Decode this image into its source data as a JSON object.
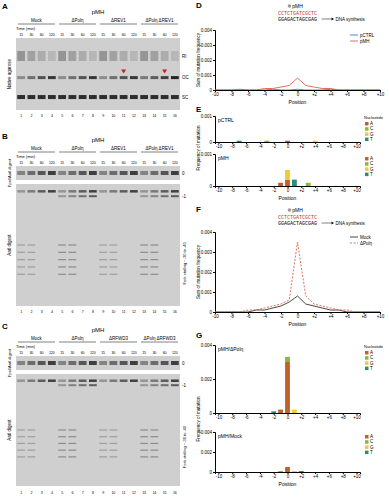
{
  "panel_labels": [
    "A",
    "B",
    "C",
    "D",
    "E",
    "F",
    "G"
  ],
  "gels": [
    {
      "title": "pMH",
      "groups": [
        "Mock",
        "ΔPolη",
        "ΔREV1",
        "ΔPolη ΔREV1"
      ],
      "time_label": "Time (min)",
      "times": [
        15,
        30,
        60,
        120,
        15,
        30,
        60,
        120,
        15,
        30,
        60,
        120,
        15,
        30,
        60,
        120
      ],
      "lane_numbers": [
        1,
        2,
        3,
        4,
        5,
        6,
        7,
        8,
        9,
        10,
        11,
        12,
        13,
        14,
        15,
        16
      ],
      "side_labels": [
        "RI",
        "OC",
        "SC"
      ],
      "left_label": "Native agarose"
    },
    {
      "title": "pMH",
      "groups": [
        "Mock",
        "ΔPolη",
        "ΔREV1",
        "ΔPolη ΔREV1"
      ],
      "time_label": "Time (min)",
      "times": [
        15,
        30,
        60,
        120,
        15,
        30,
        60,
        120,
        15,
        30,
        60,
        120,
        15,
        30,
        60,
        120
      ],
      "lane_numbers": [
        1,
        2,
        3,
        4,
        5,
        6,
        7,
        8,
        9,
        10,
        11,
        12,
        13,
        14,
        15,
        16
      ],
      "side_labels": [
        "0",
        "-1",
        "Fork stalling ~-30 to -40"
      ],
      "top_label": "FpoI/AatI digest",
      "bottom_label": "AatI digest"
    },
    {
      "title": "pMH",
      "groups": [
        "Mock",
        "ΔPolη",
        "ΔRFWD3",
        "ΔPolη ΔRFWD3"
      ],
      "time_label": "Time (min)",
      "times": [
        15,
        30,
        60,
        120,
        15,
        30,
        60,
        120,
        15,
        30,
        60,
        120,
        15,
        30,
        60,
        120
      ],
      "lane_numbers": [
        1,
        2,
        3,
        4,
        5,
        6,
        7,
        8,
        9,
        10,
        11,
        12,
        13,
        14,
        15,
        16
      ],
      "side_labels": [
        "0",
        "-1",
        "Fork stalling ~-30 to -40"
      ],
      "top_label": "FpoI/AatI digest",
      "bottom_label": "AatI digest"
    }
  ],
  "chart_data": [
    {
      "type": "line",
      "annotations": [
        "pMH",
        "CCTCTGATCGCTC",
        "GGAGACTAGCGAG",
        "DNA synthesis"
      ],
      "xlabel": "Position",
      "ylabel": "Sum of mutation frequency",
      "x": [
        -10,
        -9,
        -8,
        -7,
        -6,
        -5,
        -4,
        -3,
        -2,
        -1,
        0,
        1,
        2,
        3,
        4,
        5,
        6,
        7,
        8,
        9,
        10
      ],
      "series": [
        {
          "name": "pCTRL",
          "color": "#3a7fc1",
          "values": [
            0,
            0,
            0,
            5e-05,
            0,
            0,
            0,
            5e-05,
            0,
            0,
            5e-05,
            0,
            0,
            0,
            5e-05,
            0,
            0,
            0,
            0,
            0,
            0
          ]
        },
        {
          "name": "pMH",
          "color": "#e0604a",
          "values": [
            0,
            0,
            0,
            0,
            0,
            0,
            0.0001,
            0.0001,
            0.0002,
            0.0003,
            0.0008,
            0.0003,
            0.0002,
            0.0001,
            0.0001,
            0,
            0,
            0,
            0,
            0,
            0
          ]
        }
      ],
      "xlim": [
        -10,
        10
      ],
      "xticks": [
        -10,
        -8,
        -6,
        -4,
        -2,
        0,
        {
          "value": 2,
          "label": "+2"
        },
        {
          "value": 4,
          "label": "+4"
        },
        {
          "value": 6,
          "label": "+6"
        },
        {
          "value": 8,
          "label": "+8"
        },
        {
          "value": 10,
          "label": "+10"
        }
      ],
      "ylim": [
        0,
        0.004
      ],
      "yticks": [
        0,
        0.001,
        0.002,
        0.003,
        0.004
      ],
      "legend": "upper right"
    },
    {
      "type": "bar",
      "stacked": true,
      "title": "pCTRL",
      "ylabel": "Frequency of mutation",
      "legend_title": "Nucleotide",
      "x": [
        -10,
        -9,
        -8,
        -7,
        -6,
        -5,
        -4,
        -3,
        -2,
        -1,
        0,
        1,
        2,
        3,
        4,
        5,
        6,
        7,
        8,
        9,
        10
      ],
      "series": [
        {
          "name": "A",
          "color": "#c0622a",
          "values": [
            0,
            0,
            0,
            0,
            0,
            0,
            0,
            0,
            0,
            0,
            5e-05,
            0,
            0,
            0,
            0,
            0,
            0,
            0,
            0,
            0,
            0
          ]
        },
        {
          "name": "C",
          "color": "#8bb83a",
          "values": [
            0,
            0,
            0,
            0,
            0,
            0,
            0,
            5e-05,
            0,
            0,
            0,
            0,
            0,
            0,
            0,
            0,
            0,
            0,
            0,
            0,
            0
          ]
        },
        {
          "name": "G",
          "color": "#f0c93a",
          "values": [
            0,
            0,
            0,
            0,
            0,
            0,
            0,
            0,
            0,
            0,
            0,
            0,
            0,
            0,
            5e-05,
            0,
            0,
            0,
            0,
            0,
            0
          ]
        },
        {
          "name": "T",
          "color": "#2a8c7a",
          "values": [
            0,
            0,
            0,
            5e-05,
            0,
            0,
            0,
            0,
            0,
            0,
            0,
            0,
            0,
            0,
            0,
            0,
            0,
            0,
            0,
            0,
            0
          ]
        }
      ],
      "xlim": [
        -10.5,
        10.5
      ],
      "xticks": [
        -10,
        -8,
        -6,
        -4,
        -2,
        0,
        {
          "value": 2,
          "label": "+2"
        },
        {
          "value": 4,
          "label": "+4"
        },
        {
          "value": 6,
          "label": "+6"
        },
        {
          "value": 8,
          "label": "+8"
        },
        {
          "value": 10,
          "label": "+10"
        }
      ],
      "ylim": [
        0,
        0.001
      ],
      "yticks": [
        0,
        0.001
      ],
      "legend": "right"
    },
    {
      "type": "bar",
      "stacked": true,
      "title": "pMH",
      "xlabel": "Position",
      "x": [
        -10,
        -9,
        -8,
        -7,
        -6,
        -5,
        -4,
        -3,
        -2,
        -1,
        0,
        1,
        2,
        3,
        4,
        5,
        6,
        7,
        8,
        9,
        10
      ],
      "series": [
        {
          "name": "A",
          "color": "#c0622a",
          "values": [
            0,
            0,
            0,
            0,
            0,
            0,
            0,
            0,
            0,
            0.0001,
            0.0002,
            0,
            0,
            0,
            0,
            0,
            0,
            0,
            0,
            0,
            0
          ]
        },
        {
          "name": "C",
          "color": "#8bb83a",
          "values": [
            0,
            0,
            0,
            0,
            0,
            0,
            0,
            0,
            0,
            0,
            0,
            0,
            0,
            0.0001,
            0,
            0,
            0,
            0,
            0,
            0,
            0
          ]
        },
        {
          "name": "G",
          "color": "#f0c93a",
          "values": [
            0,
            0,
            0,
            0,
            0,
            0,
            0,
            0,
            0,
            0,
            0.0003,
            0,
            0,
            0,
            0,
            0,
            0,
            0,
            0,
            0,
            0
          ]
        },
        {
          "name": "T",
          "color": "#2a8c7a",
          "values": [
            0,
            0,
            0,
            0,
            0,
            0,
            0,
            0,
            0,
            0,
            0,
            0.0002,
            0,
            0,
            0,
            0,
            0,
            0,
            0,
            0,
            0
          ]
        }
      ],
      "xlim": [
        -10.5,
        10.5
      ],
      "xticks": [
        -10,
        -8,
        -6,
        -4,
        -2,
        0,
        {
          "value": 2,
          "label": "+2"
        },
        {
          "value": 4,
          "label": "+4"
        },
        {
          "value": 6,
          "label": "+6"
        },
        {
          "value": 8,
          "label": "+8"
        },
        {
          "value": 10,
          "label": "+10"
        }
      ],
      "ylim": [
        0,
        0.001
      ],
      "yticks": [
        0,
        0.001
      ],
      "legend": "right"
    },
    {
      "type": "line",
      "annotations": [
        "pMH",
        "CCTCTGATCGCTC",
        "GGAGACTAGCGAG",
        "DNA synthesis"
      ],
      "xlabel": "Position",
      "ylabel": "Sum of mutation frequency",
      "x": [
        -10,
        -9,
        -8,
        -7,
        -6,
        -5,
        -4,
        -3,
        -2,
        -1,
        0,
        1,
        2,
        3,
        4,
        5,
        6,
        7,
        8,
        9,
        10
      ],
      "series": [
        {
          "name": "Mock",
          "color": "#333333",
          "line_style": "solid",
          "values": [
            0,
            0,
            0,
            0,
            0,
            0.0001,
            0.0001,
            0.0002,
            0.0003,
            0.0005,
            0.0008,
            0.0004,
            0.0003,
            0.0002,
            0.0001,
            0.0001,
            0,
            0,
            0,
            0,
            0
          ]
        },
        {
          "name": "ΔPolη",
          "color": "#e0604a",
          "line_style": "dashed",
          "values": [
            0,
            0,
            0,
            0,
            0.0001,
            0.0001,
            0.0002,
            0.0003,
            0.0004,
            0.0006,
            0.0035,
            0.0008,
            0.0004,
            0.0003,
            0.0002,
            0.0001,
            0.0001,
            0,
            0,
            0,
            0
          ]
        }
      ],
      "xlim": [
        -10,
        10
      ],
      "xticks": [
        -10,
        -8,
        -6,
        -4,
        -2,
        0,
        {
          "value": 2,
          "label": "+2"
        },
        {
          "value": 4,
          "label": "+4"
        },
        {
          "value": 6,
          "label": "+6"
        },
        {
          "value": 8,
          "label": "+8"
        },
        {
          "value": 10,
          "label": "+10"
        }
      ],
      "ylim": [
        0,
        0.004
      ],
      "yticks": [
        0,
        0.001,
        0.002,
        0.003,
        0.004
      ],
      "legend": "upper right"
    },
    {
      "type": "bar",
      "stacked": true,
      "title": "pMH/ΔPolη",
      "ylabel": "Frequency of mutation",
      "legend_title": "Nucleotide",
      "x": [
        -10,
        -9,
        -8,
        -7,
        -6,
        -5,
        -4,
        -3,
        -2,
        -1,
        0,
        1,
        2,
        3,
        4,
        5,
        6,
        7,
        8,
        9,
        10
      ],
      "series": [
        {
          "name": "A",
          "color": "#c0622a",
          "values": [
            0,
            0,
            0,
            0,
            0,
            0,
            0,
            0,
            0,
            0.0002,
            0.003,
            0,
            0,
            0,
            0,
            0,
            0,
            0,
            0,
            0,
            0
          ]
        },
        {
          "name": "C",
          "color": "#8bb83a",
          "values": [
            0,
            0,
            0,
            0,
            0,
            0,
            0,
            0,
            0,
            0,
            0.0003,
            0,
            0,
            0,
            0,
            0,
            0,
            0,
            0,
            0,
            0
          ]
        },
        {
          "name": "G",
          "color": "#f0c93a",
          "values": [
            0,
            0,
            0,
            0,
            0,
            0,
            0,
            0,
            0,
            0,
            0,
            0.0002,
            0,
            0,
            0,
            0,
            0,
            0,
            0,
            0,
            0
          ]
        },
        {
          "name": "T",
          "color": "#2a8c7a",
          "values": [
            0,
            0,
            0,
            0,
            0,
            0,
            0,
            0,
            0.0001,
            0,
            0,
            0,
            0,
            0,
            0,
            0,
            0,
            0,
            0,
            0,
            0
          ]
        }
      ],
      "xlim": [
        -10.5,
        10.5
      ],
      "xticks": [
        -10,
        -8,
        -6,
        -4,
        -2,
        0,
        {
          "value": 2,
          "label": "+2"
        },
        {
          "value": 4,
          "label": "+4"
        },
        {
          "value": 6,
          "label": "+6"
        },
        {
          "value": 8,
          "label": "+8"
        },
        {
          "value": 10,
          "label": "+10"
        }
      ],
      "ylim": [
        0,
        0.004
      ],
      "yticks": [
        0,
        0.002,
        0.004
      ],
      "legend": "right"
    },
    {
      "type": "bar",
      "stacked": true,
      "title": "pMH/Mock",
      "xlabel": "Position",
      "x": [
        -10,
        -9,
        -8,
        -7,
        -6,
        -5,
        -4,
        -3,
        -2,
        -1,
        0,
        1,
        2,
        3,
        4,
        5,
        6,
        7,
        8,
        9,
        10
      ],
      "series": [
        {
          "name": "A",
          "color": "#c0622a",
          "values": [
            0,
            0,
            0,
            0,
            0,
            0,
            0,
            0,
            0,
            0,
            0.0005,
            0,
            0,
            0,
            0,
            0,
            0,
            0,
            0,
            0,
            0
          ]
        },
        {
          "name": "C",
          "color": "#8bb83a",
          "values": [
            0,
            0,
            0,
            0,
            0,
            0,
            0,
            0,
            0,
            0.0001,
            0,
            0,
            0,
            0,
            0,
            0,
            0,
            0,
            0,
            0,
            0
          ]
        },
        {
          "name": "G",
          "color": "#f0c93a",
          "values": [
            0,
            0,
            0,
            0,
            0,
            0,
            0,
            0,
            0,
            0,
            0,
            0.0001,
            0,
            0,
            0,
            0,
            0,
            0,
            0,
            0,
            0
          ]
        },
        {
          "name": "T",
          "color": "#2a8c7a",
          "values": [
            0,
            0,
            0,
            0,
            0,
            0,
            0,
            0,
            0,
            0,
            0,
            0,
            0.0001,
            0,
            0,
            0,
            0,
            0,
            0,
            0,
            0
          ]
        }
      ],
      "xlim": [
        -10.5,
        10.5
      ],
      "xticks": [
        -10,
        -8,
        -6,
        -4,
        -2,
        0,
        {
          "value": 2,
          "label": "+2"
        },
        {
          "value": 4,
          "label": "+4"
        },
        {
          "value": 6,
          "label": "+6"
        },
        {
          "value": 8,
          "label": "+8"
        },
        {
          "value": 10,
          "label": "+10"
        }
      ],
      "ylim": [
        0,
        0.004
      ],
      "yticks": [
        0,
        0.002,
        0.004
      ],
      "legend": "right"
    }
  ]
}
